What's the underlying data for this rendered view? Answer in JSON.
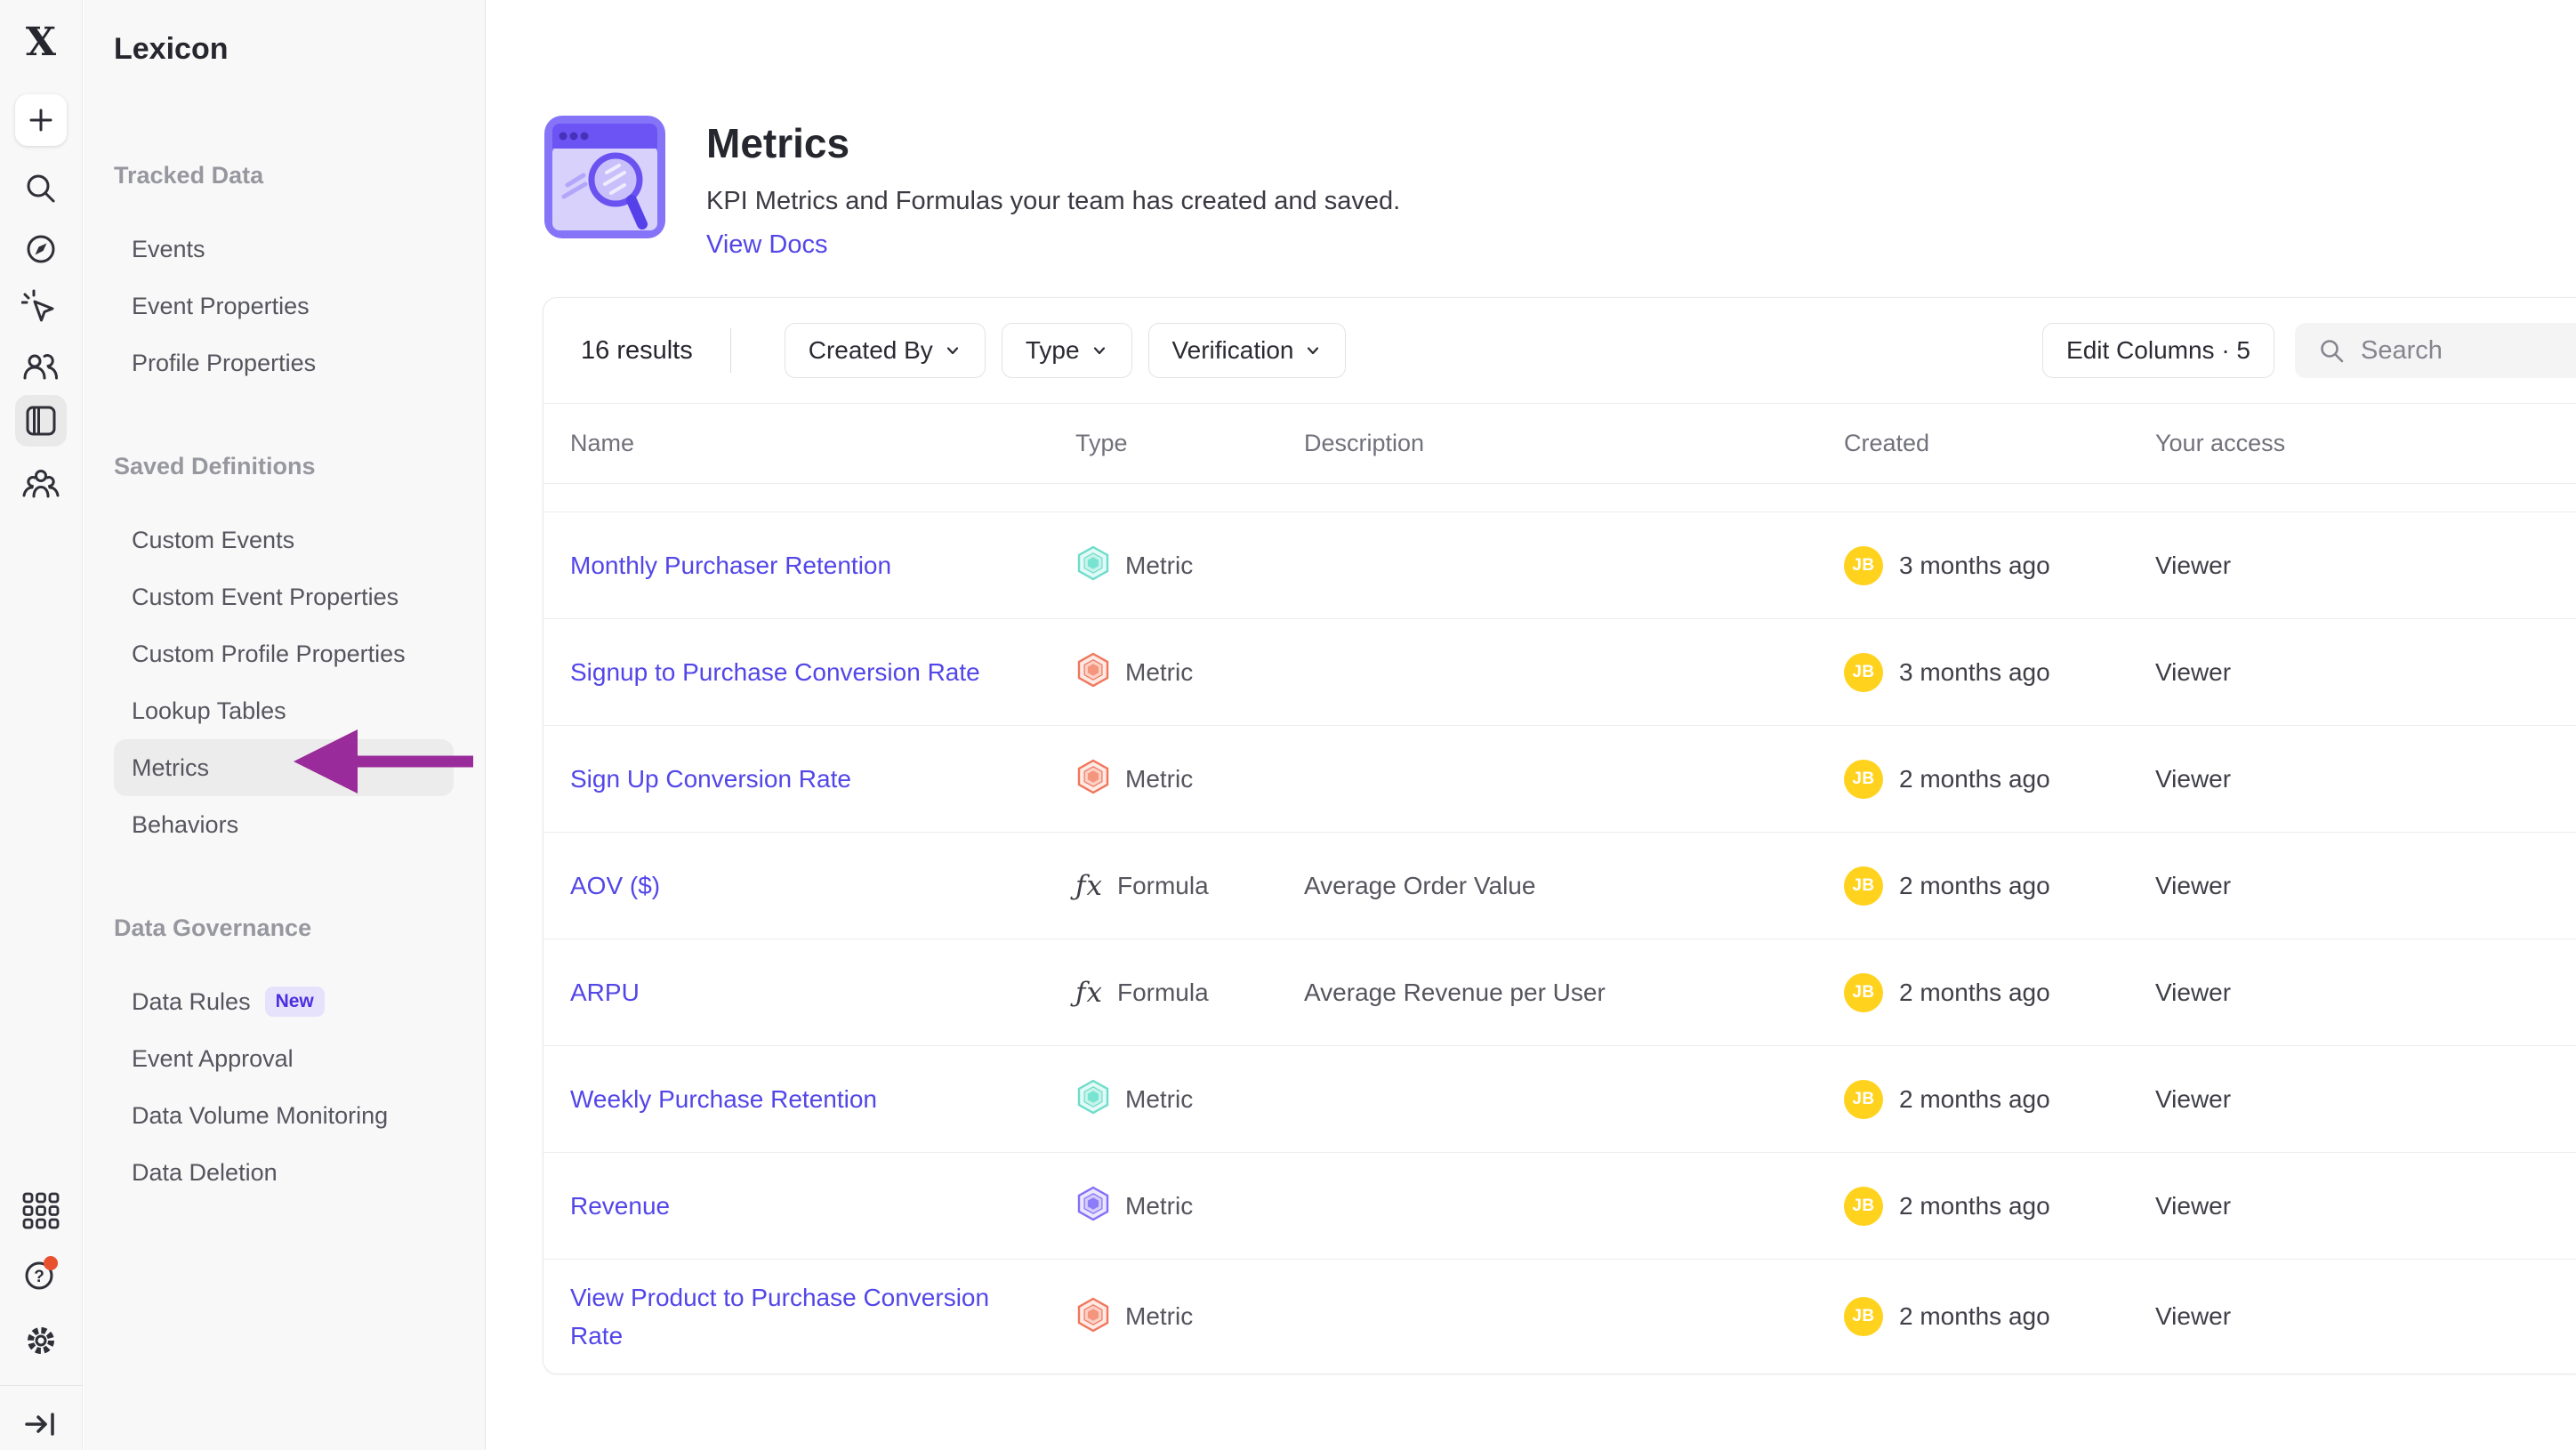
{
  "sidebar": {
    "title": "Lexicon",
    "sections": [
      {
        "title": "Tracked Data",
        "items": [
          {
            "label": "Events"
          },
          {
            "label": "Event Properties"
          },
          {
            "label": "Profile Properties"
          }
        ]
      },
      {
        "title": "Saved Definitions",
        "items": [
          {
            "label": "Custom Events"
          },
          {
            "label": "Custom Event Properties"
          },
          {
            "label": "Custom Profile Properties"
          },
          {
            "label": "Lookup Tables"
          },
          {
            "label": "Metrics",
            "selected": true
          },
          {
            "label": "Behaviors"
          }
        ]
      },
      {
        "title": "Data Governance",
        "items": [
          {
            "label": "Data Rules",
            "badge": "New"
          },
          {
            "label": "Event Approval"
          },
          {
            "label": "Data Volume Monitoring"
          },
          {
            "label": "Data Deletion"
          }
        ]
      }
    ]
  },
  "page_header": {
    "title": "Metrics",
    "subtitle": "KPI Metrics and Formulas your team has created and saved.",
    "link_label": "View Docs"
  },
  "toolbar": {
    "results_label": "16 results",
    "filters": [
      "Created By",
      "Type",
      "Verification"
    ],
    "edit_columns_label": "Edit Columns · 5",
    "search_placeholder": "Search"
  },
  "table": {
    "columns": [
      "Name",
      "Type",
      "Description",
      "Created",
      "Your access"
    ],
    "rows": [
      {
        "name": "Monthly Purchaser Retention",
        "type": "Metric",
        "type_icon": "metric-teal",
        "description": "",
        "created": "3 months ago",
        "avatar": "JB",
        "access": "Viewer"
      },
      {
        "name": "Signup to Purchase Conversion Rate",
        "type": "Metric",
        "type_icon": "metric-orange",
        "description": "",
        "created": "3 months ago",
        "avatar": "JB",
        "access": "Viewer"
      },
      {
        "name": "Sign Up Conversion Rate",
        "type": "Metric",
        "type_icon": "metric-orange",
        "description": "",
        "created": "2 months ago",
        "avatar": "JB",
        "access": "Viewer"
      },
      {
        "name": "AOV ($)",
        "type": "Formula",
        "type_icon": "formula",
        "description": "Average Order Value",
        "created": "2 months ago",
        "avatar": "JB",
        "access": "Viewer"
      },
      {
        "name": "ARPU",
        "type": "Formula",
        "type_icon": "formula",
        "description": "Average Revenue per User",
        "created": "2 months ago",
        "avatar": "JB",
        "access": "Viewer"
      },
      {
        "name": "Weekly Purchase Retention",
        "type": "Metric",
        "type_icon": "metric-teal",
        "description": "",
        "created": "2 months ago",
        "avatar": "JB",
        "access": "Viewer"
      },
      {
        "name": "Revenue",
        "type": "Metric",
        "type_icon": "metric-purple",
        "description": "",
        "created": "2 months ago",
        "avatar": "JB",
        "access": "Viewer"
      },
      {
        "name": "View Product to Purchase Conversion Rate",
        "type": "Metric",
        "type_icon": "metric-orange",
        "description": "",
        "created": "2 months ago",
        "avatar": "JB",
        "access": "Viewer"
      }
    ]
  },
  "colors": {
    "link": "#5346e8",
    "annotation_arrow": "#9a2b9a",
    "avatar_bg": "#ffd21e",
    "badge_bg": "#e7e2fc",
    "badge_text": "#4b2fe0",
    "help_notification_dot": "#e8502e",
    "metric_teal": {
      "stroke": "#6fdccb",
      "fill": "#e2faf6",
      "mid": "#c6f3ea",
      "inner": "#79e3d2"
    },
    "metric_orange": {
      "stroke": "#f0765c",
      "fill": "#fdeae4",
      "mid": "#fbd0c5",
      "inner": "#f4967e"
    },
    "metric_purple": {
      "stroke": "#8370f6",
      "fill": "#eae6fd",
      "mid": "#d4ccfb",
      "inner": "#8d7cf8"
    }
  }
}
